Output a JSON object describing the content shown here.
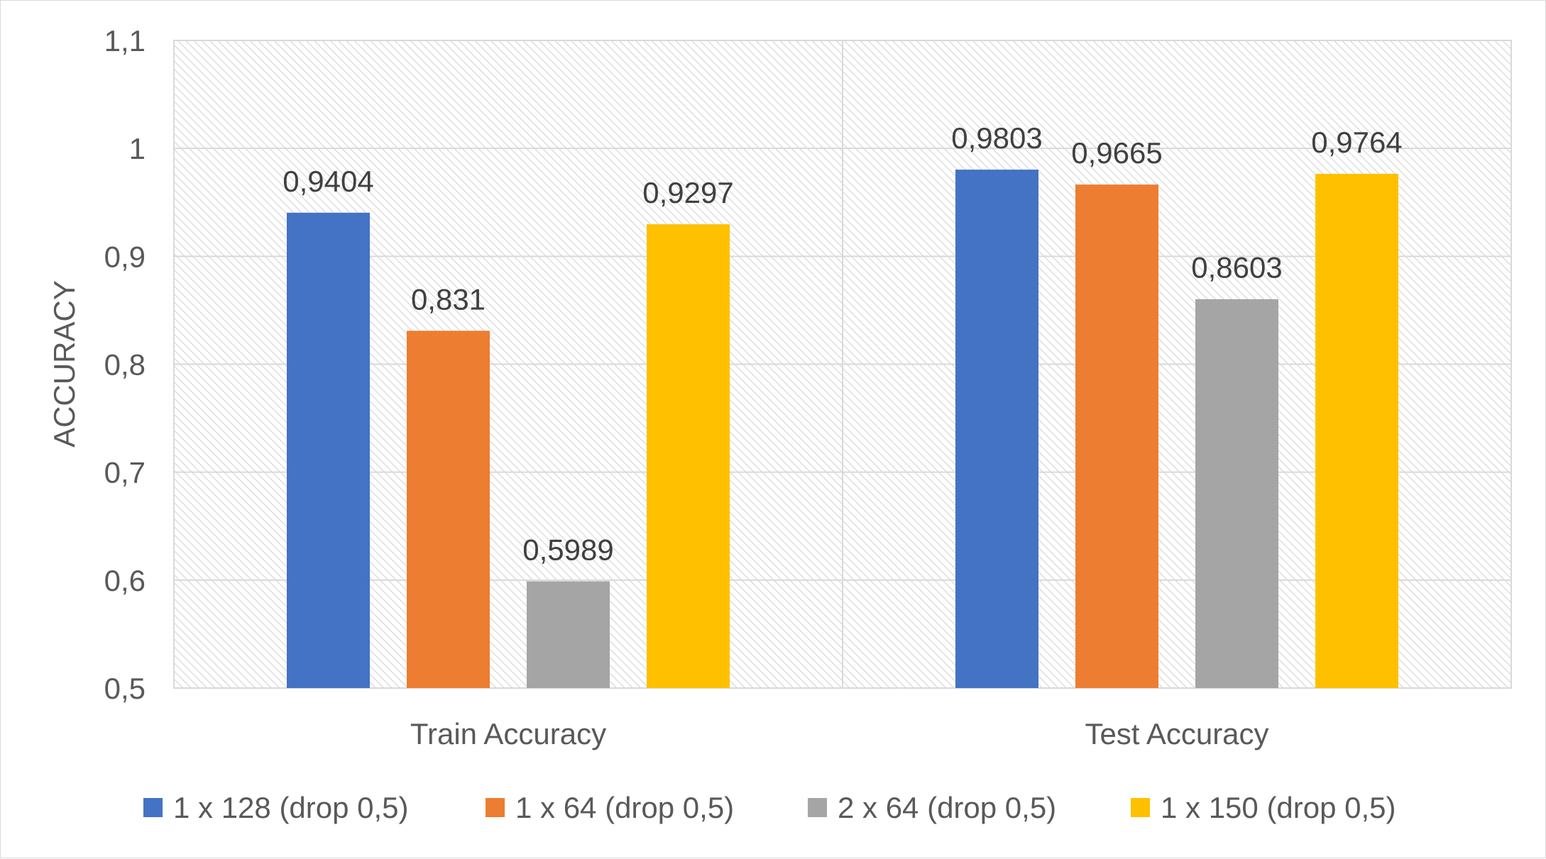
{
  "chart_data": {
    "type": "bar",
    "title": "",
    "xlabel": "",
    "ylabel": "ACCURACY",
    "ylim": [
      0.5,
      1.1
    ],
    "yticks": [
      0.5,
      0.6,
      0.7,
      0.8,
      0.9,
      1.0,
      1.1
    ],
    "ytick_labels": [
      "0,5",
      "0,6",
      "0,7",
      "0,8",
      "0,9",
      "1",
      "1,1"
    ],
    "categories": [
      "Train Accuracy",
      "Test Accuracy"
    ],
    "series": [
      {
        "name": "1 x 128 (drop 0,5)",
        "color": "#4472C4",
        "values": [
          0.9404,
          0.9803
        ],
        "labels": [
          "0,9404",
          "0,9803"
        ]
      },
      {
        "name": "1 x 64 (drop 0,5)",
        "color": "#ED7D31",
        "values": [
          0.831,
          0.9665
        ],
        "labels": [
          "0,831",
          "0,9665"
        ]
      },
      {
        "name": "2 x 64 (drop 0,5)",
        "color": "#A5A5A5",
        "values": [
          0.5989,
          0.8603
        ],
        "labels": [
          "0,5989",
          "0,8603"
        ]
      },
      {
        "name": "1 x 150 (drop 0,5)",
        "color": "#FFC000",
        "values": [
          0.9297,
          0.9764
        ],
        "labels": [
          "0,9297",
          "0,9764"
        ]
      }
    ],
    "grid": true,
    "legend_position": "bottom"
  }
}
